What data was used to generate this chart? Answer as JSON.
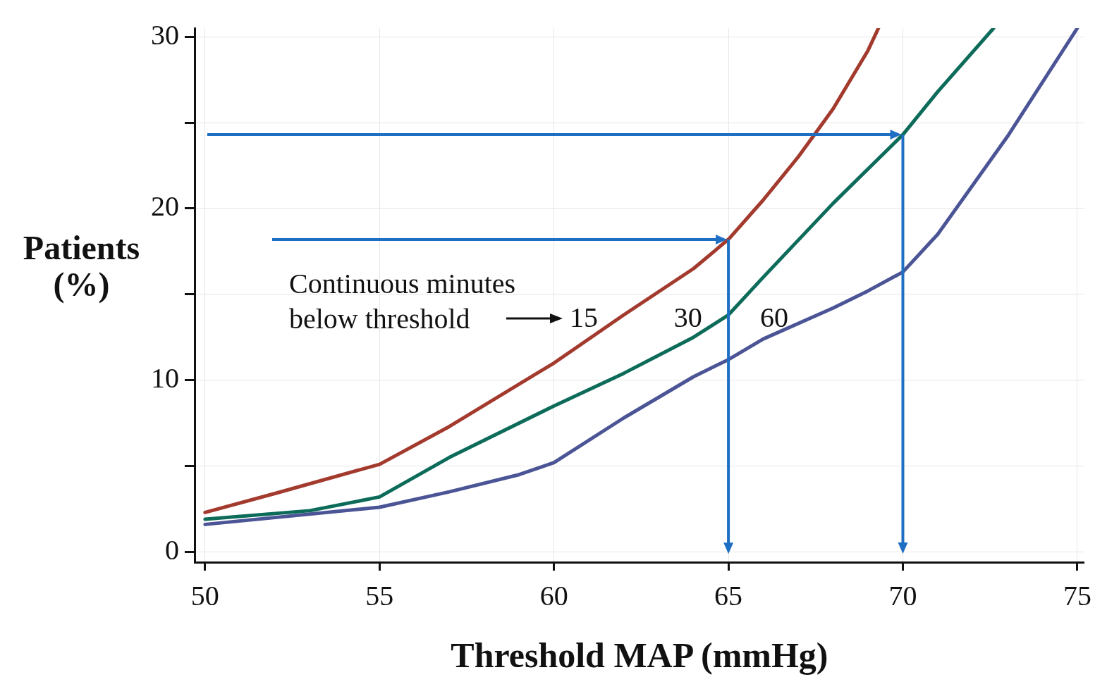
{
  "chart_data": {
    "type": "line",
    "xlabel": "Threshold MAP (mmHg)",
    "ylabel": "Patients\n(%)",
    "xlim": [
      49.7,
      75.2
    ],
    "xticks": [
      50,
      55,
      60,
      65,
      70,
      75
    ],
    "ylim": [
      -0.6,
      30.5
    ],
    "yticks": [
      0,
      {
        "value": 5,
        "label": null
      },
      10,
      {
        "value": 15,
        "label": null
      },
      20,
      {
        "value": 25,
        "label": null
      },
      30
    ],
    "grid": true,
    "legend": false,
    "marker": "none",
    "line_style": "solid",
    "annotations": [
      "Continuous minutes\nbelow threshold"
    ],
    "series": [
      {
        "name": "15",
        "color": "#a33a2e",
        "x": [
          50,
          52,
          55,
          57,
          60,
          62,
          64,
          65,
          66,
          67,
          67.5,
          68,
          69,
          69.3
        ],
        "values": [
          2.3,
          3.4,
          5.1,
          7.3,
          11.0,
          13.8,
          16.5,
          18.2,
          20.5,
          23.0,
          24.4,
          25.8,
          29.2,
          30.5
        ]
      },
      {
        "name": "30",
        "color": "#0d6b5a",
        "x": [
          50,
          53,
          55,
          57,
          60,
          62,
          64,
          65,
          66,
          68,
          70,
          71,
          72.6
        ],
        "values": [
          1.9,
          2.4,
          3.2,
          5.5,
          8.5,
          10.4,
          12.5,
          13.8,
          16.0,
          20.3,
          24.3,
          26.8,
          30.5
        ]
      },
      {
        "name": "60",
        "color": "#4b5596",
        "x": [
          50,
          55,
          57,
          59,
          60,
          62,
          64,
          65,
          66,
          68,
          69,
          70,
          71,
          73,
          75
        ],
        "values": [
          1.6,
          2.6,
          3.5,
          4.5,
          5.2,
          7.8,
          10.2,
          11.2,
          12.4,
          14.2,
          15.2,
          16.3,
          18.5,
          24.2,
          30.5
        ]
      }
    ]
  }
}
